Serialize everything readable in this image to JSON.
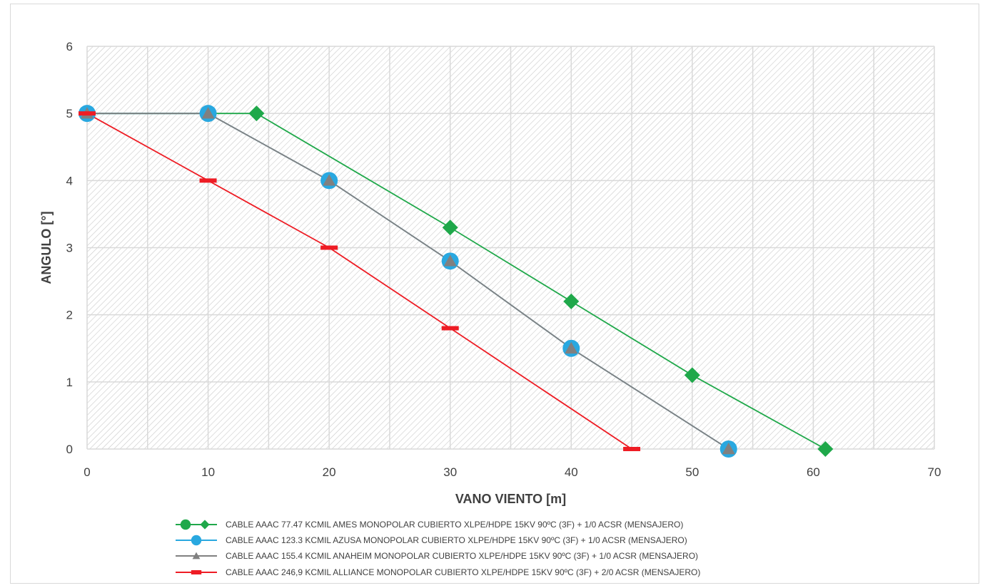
{
  "chart_data": {
    "type": "line",
    "title": "",
    "xlabel": "VANO VIENTO [m]",
    "ylabel": "ANGULO [°]",
    "xlim": [
      0,
      70
    ],
    "ylim": [
      0,
      6
    ],
    "xticks": [
      0,
      10,
      20,
      30,
      40,
      50,
      60,
      70
    ],
    "yticks": [
      0,
      1,
      2,
      3,
      4,
      5,
      6
    ],
    "grid": true,
    "legend_position": "bottom",
    "series": [
      {
        "name": "CABLE AAAC 77.47 KCMIL AMES MONOPOLAR CUBIERTO XLPE/HDPE 15KV 90ºC (3F) + 1/0 ACSR  (MENSAJERO)",
        "color": "#1fa84a",
        "marker": "diamond",
        "legend_marker": "circle",
        "x": [
          0,
          10,
          14,
          30,
          40,
          50,
          61
        ],
        "y": [
          5,
          5,
          5,
          3.3,
          2.2,
          1.1,
          0
        ]
      },
      {
        "name": "CABLE AAAC 123.3 KCMIL AZUSA MONOPOLAR CUBIERTO XLPE/HDPE 15KV 90ºC (3F) + 1/0 ACSR  (MENSAJERO)",
        "color": "#29a8e0",
        "marker": "circle",
        "legend_marker": "circle",
        "x": [
          0,
          10,
          20,
          30,
          40,
          53
        ],
        "y": [
          5,
          5,
          4,
          2.8,
          1.5,
          0
        ]
      },
      {
        "name": "CABLE AAAC 155.4 KCMIL ANAHEIM  MONOPOLAR CUBIERTO XLPE/HDPE 15KV 90ºC (3F) + 1/0 ACSR  (MENSAJERO)",
        "color": "#808080",
        "marker": "triangle",
        "legend_marker": "triangle",
        "x": [
          0,
          10,
          20,
          30,
          40,
          53
        ],
        "y": [
          5,
          5,
          4,
          2.8,
          1.5,
          0
        ]
      },
      {
        "name": "CABLE AAAC 246,9 KCMIL ALLIANCE MONOPOLAR CUBIERTO XLPE/HDPE 15KV 90ºC (3F) + 2/0 ACSR  (MENSAJERO)",
        "color": "#ee1c24",
        "marker": "dash",
        "legend_marker": "dash",
        "x": [
          0,
          10,
          20,
          30,
          45
        ],
        "y": [
          5,
          4,
          3,
          1.8,
          0
        ]
      }
    ]
  },
  "colors": {
    "grid": "#d9d9d9",
    "hatch": "#c9c9c9",
    "text": "#404040"
  }
}
